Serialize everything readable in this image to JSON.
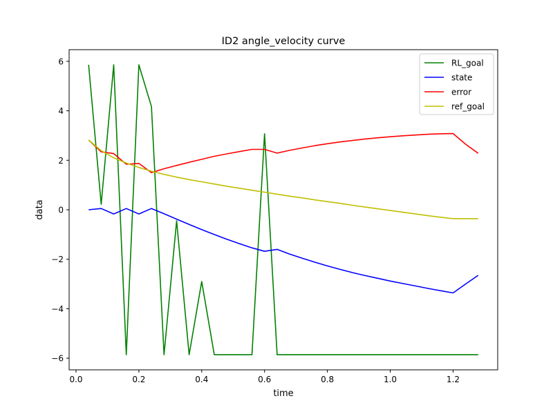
{
  "chart_data": {
    "type": "line",
    "title": "ID2 angle_velocity curve",
    "xlabel": "time",
    "ylabel": "data",
    "xlim": [
      -0.022,
      1.342
    ],
    "ylim": [
      -6.47,
      6.47
    ],
    "xticks": [
      0.0,
      0.2,
      0.4,
      0.6,
      0.8,
      1.0,
      1.2
    ],
    "xtick_labels": [
      "0.0",
      "0.2",
      "0.4",
      "0.6",
      "0.8",
      "1.0",
      "1.2"
    ],
    "yticks": [
      -6,
      -4,
      -2,
      0,
      2,
      4,
      6
    ],
    "ytick_labels": [
      "−6",
      "−4",
      "−2",
      "0",
      "2",
      "4",
      "6"
    ],
    "grid": false,
    "legend_position": "top-right",
    "series": [
      {
        "name": "RL_goal",
        "color": "#008000",
        "x": [
          0.04,
          0.08,
          0.12,
          0.16,
          0.2,
          0.24,
          0.28,
          0.32,
          0.36,
          0.4,
          0.44,
          0.48,
          0.52,
          0.56,
          0.6,
          0.64,
          0.68,
          0.72,
          0.76,
          0.8,
          0.84,
          0.88,
          0.92,
          0.96,
          1.0,
          1.04,
          1.08,
          1.12,
          1.16,
          1.2,
          1.24,
          1.28
        ],
        "y": [
          5.86,
          0.22,
          5.86,
          -5.86,
          5.86,
          4.17,
          -5.86,
          -0.45,
          -5.86,
          -2.9,
          -5.86,
          -5.86,
          -5.86,
          -5.86,
          3.07,
          -5.86,
          -5.86,
          -5.86,
          -5.86,
          -5.86,
          -5.86,
          -5.86,
          -5.86,
          -5.86,
          -5.86,
          -5.86,
          -5.86,
          -5.86,
          -5.86,
          -5.86,
          -5.86,
          -5.86
        ]
      },
      {
        "name": "state",
        "color": "#0000ff",
        "x": [
          0.04,
          0.08,
          0.12,
          0.16,
          0.2,
          0.24,
          0.28,
          0.32,
          0.36,
          0.4,
          0.44,
          0.48,
          0.52,
          0.56,
          0.6,
          0.64,
          0.68,
          0.72,
          0.76,
          0.8,
          0.84,
          0.88,
          0.92,
          0.96,
          1.0,
          1.04,
          1.08,
          1.12,
          1.16,
          1.2,
          1.24,
          1.28
        ],
        "y": [
          0.0,
          0.05,
          -0.17,
          0.05,
          -0.17,
          0.05,
          -0.16,
          -0.38,
          -0.59,
          -0.8,
          -1.0,
          -1.19,
          -1.37,
          -1.54,
          -1.68,
          -1.6,
          -1.79,
          -1.96,
          -2.12,
          -2.27,
          -2.41,
          -2.54,
          -2.66,
          -2.77,
          -2.88,
          -2.98,
          -3.08,
          -3.18,
          -3.27,
          -3.36,
          -3.0,
          -2.65
        ]
      },
      {
        "name": "error",
        "color": "#ff0000",
        "x": [
          0.04,
          0.08,
          0.12,
          0.16,
          0.2,
          0.24,
          0.28,
          0.32,
          0.36,
          0.4,
          0.44,
          0.48,
          0.52,
          0.56,
          0.6,
          0.64,
          0.68,
          0.72,
          0.76,
          0.8,
          0.84,
          0.88,
          0.92,
          0.96,
          1.0,
          1.04,
          1.08,
          1.12,
          1.16,
          1.2,
          1.24,
          1.28
        ],
        "y": [
          2.82,
          2.34,
          2.27,
          1.84,
          1.87,
          1.5,
          1.66,
          1.79,
          1.92,
          2.04,
          2.16,
          2.26,
          2.35,
          2.44,
          2.44,
          2.29,
          2.4,
          2.5,
          2.59,
          2.67,
          2.74,
          2.8,
          2.86,
          2.91,
          2.95,
          2.99,
          3.02,
          3.05,
          3.07,
          3.08,
          2.65,
          2.28
        ]
      },
      {
        "name": "ref_goal",
        "color": "#bfbf00",
        "x": [
          0.04,
          0.08,
          0.12,
          0.16,
          0.2,
          0.24,
          0.28,
          0.32,
          0.36,
          0.4,
          0.44,
          0.48,
          0.52,
          0.56,
          0.6,
          0.64,
          0.68,
          0.72,
          0.76,
          0.8,
          0.84,
          0.88,
          0.92,
          0.96,
          1.0,
          1.04,
          1.08,
          1.12,
          1.16,
          1.2,
          1.24,
          1.28
        ],
        "y": [
          2.82,
          2.39,
          2.1,
          1.89,
          1.71,
          1.56,
          1.43,
          1.32,
          1.22,
          1.13,
          1.04,
          0.95,
          0.87,
          0.79,
          0.71,
          0.63,
          0.55,
          0.48,
          0.4,
          0.33,
          0.26,
          0.18,
          0.11,
          0.04,
          -0.03,
          -0.1,
          -0.17,
          -0.24,
          -0.3,
          -0.36,
          -0.36,
          -0.36
        ]
      }
    ]
  }
}
